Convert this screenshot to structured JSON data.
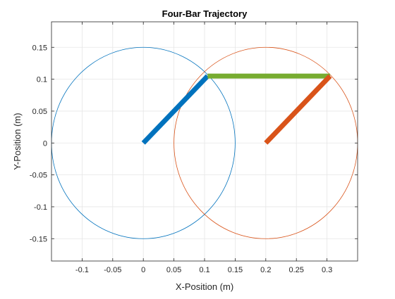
{
  "chart_data": {
    "type": "line",
    "title": "Four-Bar Trajectory",
    "xlabel": "X-Position (m)",
    "ylabel": "Y-Position (m)",
    "xlim": [
      -0.15,
      0.35
    ],
    "ylim": [
      -0.185,
      0.19
    ],
    "xticks": [
      -0.1,
      -0.05,
      0,
      0.05,
      0.1,
      0.15,
      0.2,
      0.25,
      0.3
    ],
    "xtick_labels": [
      "-0.1",
      "-0.05",
      "0",
      "0.05",
      "0.1",
      "0.15",
      "0.2",
      "0.25",
      "0.3"
    ],
    "yticks": [
      -0.15,
      -0.1,
      -0.05,
      0,
      0.05,
      0.1,
      0.15
    ],
    "ytick_labels": [
      "-0.15",
      "-0.1",
      "-0.05",
      "0",
      "0.05",
      "0.1",
      "0.15"
    ],
    "grid": true,
    "circles": [
      {
        "cx": 0,
        "cy": 0,
        "r": 0.15,
        "color": "#0072BD"
      },
      {
        "cx": 0.2,
        "cy": 0,
        "r": 0.15,
        "color": "#D95319"
      }
    ],
    "links": [
      {
        "x": [
          0,
          0.105
        ],
        "y": [
          0,
          0.105
        ],
        "color": "#0072BD"
      },
      {
        "x": [
          0.105,
          0.305
        ],
        "y": [
          0.105,
          0.105
        ],
        "color": "#77AC30"
      },
      {
        "x": [
          0.2,
          0.305
        ],
        "y": [
          0,
          0.105
        ],
        "color": "#D95319"
      }
    ]
  }
}
